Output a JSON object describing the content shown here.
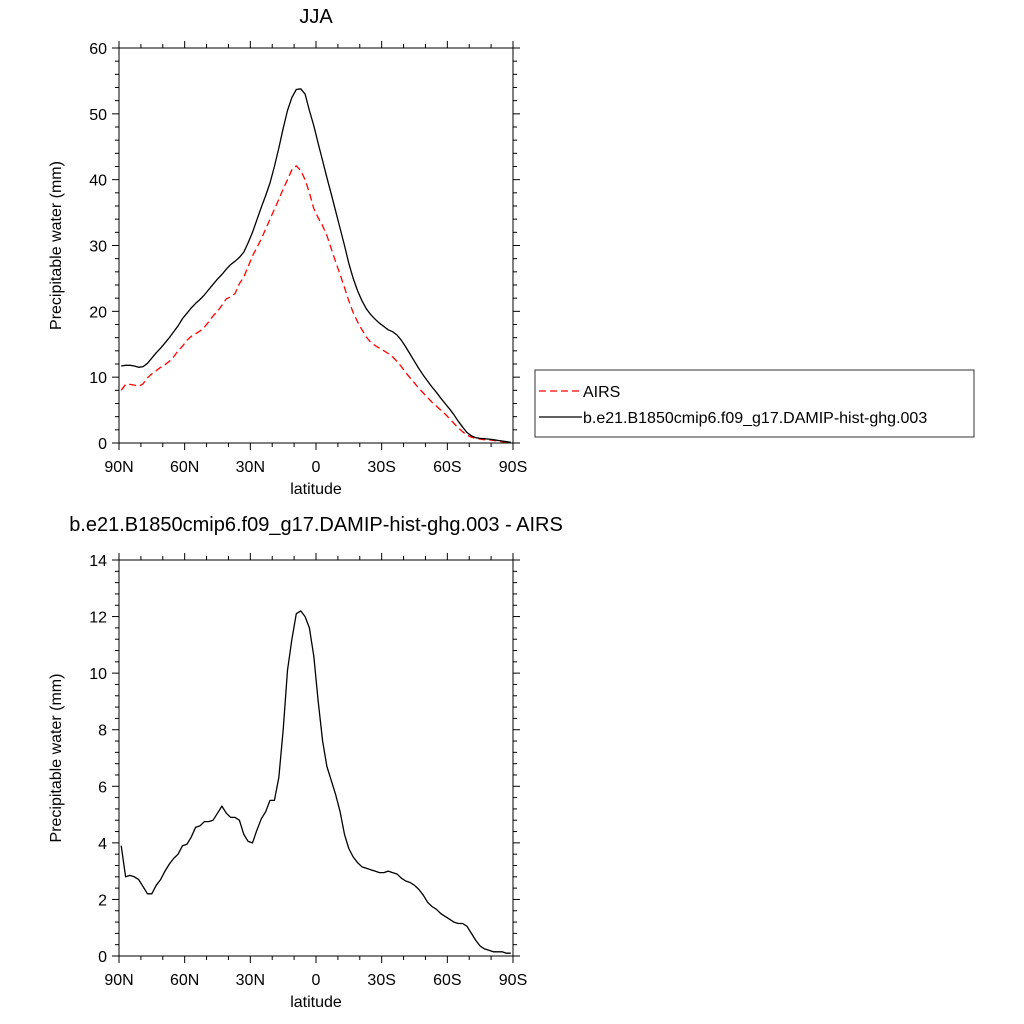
{
  "chart_data": [
    {
      "type": "line",
      "title": "JJA",
      "xlabel": "latitude",
      "ylabel": "Precipitable water (mm)",
      "xlim": [
        90,
        -90
      ],
      "ylim": [
        0,
        60
      ],
      "x_ticks": [
        90,
        60,
        30,
        0,
        -30,
        -60,
        -90
      ],
      "x_tick_labels": [
        "90N",
        "60N",
        "30N",
        "0",
        "30S",
        "60S",
        "90S"
      ],
      "y_ticks": [
        0,
        10,
        20,
        30,
        40,
        50,
        60
      ],
      "y_tick_labels": [
        "0",
        "10",
        "20",
        "30",
        "40",
        "50",
        "60"
      ],
      "legend_position": "right",
      "series": [
        {
          "name": "AIRS",
          "color": "#ff0000",
          "dash": "dashed",
          "x": [
            89,
            87,
            85,
            83,
            81,
            79,
            77,
            75,
            73,
            71,
            69,
            67,
            65,
            63,
            61,
            59,
            57,
            55,
            53,
            51,
            49,
            47,
            45,
            43,
            41,
            39,
            37,
            35,
            33,
            31,
            29,
            27,
            25,
            23,
            21,
            19,
            17,
            15,
            13,
            11,
            9,
            7,
            5,
            3,
            1,
            -1,
            -3,
            -5,
            -7,
            -9,
            -11,
            -13,
            -15,
            -17,
            -19,
            -21,
            -23,
            -25,
            -27,
            -29,
            -31,
            -33,
            -35,
            -37,
            -39,
            -41,
            -43,
            -45,
            -47,
            -49,
            -51,
            -53,
            -55,
            -57,
            -59,
            -61,
            -63,
            -65,
            -67,
            -69,
            -71,
            -73,
            -75,
            -77,
            -79,
            -81,
            -83,
            -85,
            -87,
            -89
          ],
          "y": [
            8.0,
            8.9,
            8.9,
            8.8,
            8.6,
            9.0,
            9.9,
            10.5,
            11.0,
            11.5,
            11.9,
            12.4,
            13.1,
            14.0,
            14.7,
            15.6,
            16.2,
            16.6,
            17.0,
            17.6,
            18.4,
            19.3,
            20.0,
            20.9,
            21.9,
            22.2,
            22.7,
            24.2,
            25.2,
            26.8,
            28.4,
            29.7,
            31.0,
            32.5,
            34.0,
            35.5,
            37.0,
            38.6,
            40.0,
            41.5,
            42.1,
            41.4,
            40.0,
            38.0,
            35.6,
            34.2,
            33.0,
            31.5,
            29.5,
            27.5,
            25.6,
            23.6,
            21.6,
            19.8,
            18.4,
            17.2,
            16.1,
            15.3,
            14.8,
            14.4,
            14.0,
            13.6,
            13.1,
            12.4,
            11.6,
            10.7,
            9.9,
            9.1,
            8.3,
            7.6,
            6.9,
            6.2,
            5.6,
            5.0,
            4.4,
            3.7,
            3.0,
            2.3,
            1.7,
            1.2,
            0.9,
            0.7,
            0.6,
            0.5,
            0.45,
            0.4,
            0.3,
            0.2,
            0.15,
            0.1
          ]
        },
        {
          "name": "b.e21.B1850cmip6.f09_g17.DAMIP-hist-ghg.003",
          "color": "#000000",
          "dash": "solid",
          "x": [
            89,
            87,
            85,
            83,
            81,
            79,
            77,
            75,
            73,
            71,
            69,
            67,
            65,
            63,
            61,
            59,
            57,
            55,
            53,
            51,
            49,
            47,
            45,
            43,
            41,
            39,
            37,
            35,
            33,
            31,
            29,
            27,
            25,
            23,
            21,
            19,
            17,
            15,
            13,
            11,
            9,
            7,
            5,
            3,
            1,
            -1,
            -3,
            -5,
            -7,
            -9,
            -11,
            -13,
            -15,
            -17,
            -19,
            -21,
            -23,
            -25,
            -27,
            -29,
            -31,
            -33,
            -35,
            -37,
            -39,
            -41,
            -43,
            -45,
            -47,
            -49,
            -51,
            -53,
            -55,
            -57,
            -59,
            -61,
            -63,
            -65,
            -67,
            -69,
            -71,
            -73,
            -75,
            -77,
            -79,
            -81,
            -83,
            -85,
            -87,
            -89
          ],
          "y": [
            11.7,
            11.8,
            11.8,
            11.7,
            11.5,
            11.6,
            12.1,
            12.9,
            13.7,
            14.4,
            15.2,
            16.0,
            16.9,
            17.8,
            18.9,
            19.7,
            20.5,
            21.2,
            21.8,
            22.5,
            23.3,
            24.1,
            24.9,
            25.6,
            26.4,
            27.1,
            27.6,
            28.2,
            29.0,
            30.4,
            32.0,
            33.9,
            35.8,
            37.6,
            39.5,
            42.0,
            44.8,
            47.8,
            50.5,
            52.5,
            53.7,
            53.8,
            53.0,
            50.5,
            48.2,
            45.5,
            42.9,
            40.3,
            37.8,
            35.2,
            32.6,
            30.0,
            27.3,
            25.0,
            23.1,
            21.6,
            20.4,
            19.5,
            18.8,
            18.2,
            17.7,
            17.2,
            16.9,
            16.4,
            15.6,
            14.6,
            13.5,
            12.4,
            11.3,
            10.3,
            9.4,
            8.5,
            7.7,
            6.8,
            6.0,
            5.2,
            4.3,
            3.3,
            2.4,
            1.6,
            1.1,
            0.8,
            0.7,
            0.65,
            0.6,
            0.5,
            0.4,
            0.3,
            0.2,
            0.1
          ]
        }
      ]
    },
    {
      "type": "line",
      "title": "b.e21.B1850cmip6.f09_g17.DAMIP-hist-ghg.003 - AIRS",
      "xlabel": "latitude",
      "ylabel": "Precipitable water (mm)",
      "xlim": [
        90,
        -90
      ],
      "ylim": [
        0,
        14
      ],
      "x_ticks": [
        90,
        60,
        30,
        0,
        -30,
        -60,
        -90
      ],
      "x_tick_labels": [
        "90N",
        "60N",
        "30N",
        "0",
        "30S",
        "60S",
        "90S"
      ],
      "y_ticks": [
        0,
        2,
        4,
        6,
        8,
        10,
        12,
        14
      ],
      "y_tick_labels": [
        "0",
        "2",
        "4",
        "6",
        "8",
        "10",
        "12",
        "14"
      ],
      "series": [
        {
          "color": "#000000",
          "dash": "solid",
          "x": [
            89,
            87,
            85,
            83,
            81,
            79,
            77,
            75,
            73,
            71,
            69,
            67,
            65,
            63,
            61,
            59,
            57,
            55,
            53,
            51,
            49,
            47,
            45,
            43,
            41,
            39,
            37,
            35,
            33,
            31,
            29,
            27,
            25,
            23,
            21,
            19,
            17,
            15,
            13,
            11,
            9,
            7,
            5,
            3,
            1,
            -1,
            -3,
            -5,
            -7,
            -9,
            -11,
            -13,
            -15,
            -17,
            -19,
            -21,
            -23,
            -25,
            -27,
            -29,
            -31,
            -33,
            -35,
            -37,
            -39,
            -41,
            -43,
            -45,
            -47,
            -49,
            -51,
            -53,
            -55,
            -57,
            -59,
            -61,
            -63,
            -65,
            -67,
            -69,
            -71,
            -73,
            -75,
            -77,
            -79,
            -81,
            -83,
            -85,
            -87,
            -89
          ],
          "y": [
            3.9,
            2.8,
            2.85,
            2.8,
            2.7,
            2.45,
            2.2,
            2.2,
            2.5,
            2.7,
            3.0,
            3.25,
            3.45,
            3.6,
            3.9,
            3.95,
            4.2,
            4.55,
            4.6,
            4.75,
            4.75,
            4.8,
            5.05,
            5.3,
            5.05,
            4.9,
            4.9,
            4.8,
            4.3,
            4.05,
            4.0,
            4.45,
            4.85,
            5.1,
            5.5,
            5.5,
            6.3,
            8.0,
            10.1,
            11.2,
            12.1,
            12.2,
            12.0,
            11.6,
            10.6,
            9.0,
            7.6,
            6.7,
            6.2,
            5.7,
            5.1,
            4.3,
            3.8,
            3.5,
            3.3,
            3.15,
            3.1,
            3.05,
            3.0,
            2.95,
            2.95,
            3.0,
            2.95,
            2.9,
            2.75,
            2.65,
            2.6,
            2.5,
            2.35,
            2.15,
            1.9,
            1.75,
            1.65,
            1.5,
            1.4,
            1.3,
            1.2,
            1.15,
            1.15,
            1.05,
            0.8,
            0.55,
            0.35,
            0.25,
            0.2,
            0.15,
            0.15,
            0.15,
            0.1,
            0.1
          ]
        }
      ]
    }
  ]
}
